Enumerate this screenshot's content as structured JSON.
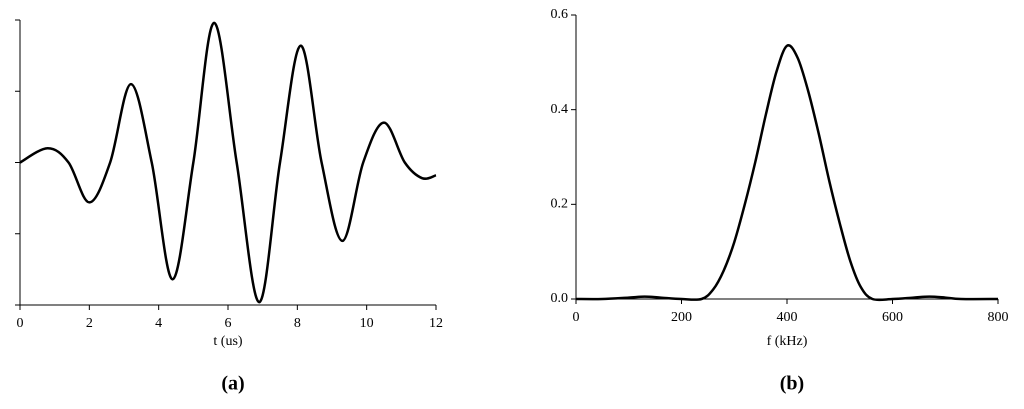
{
  "chart_data": [
    {
      "type": "line",
      "label": "(a)",
      "x_label": "t (us)",
      "xlim": [
        0,
        12
      ],
      "xticks": [
        0,
        2,
        4,
        6,
        8,
        10,
        12
      ],
      "ylim": [
        -1,
        1
      ],
      "yticks": [
        -1,
        -0.5,
        0,
        0.5,
        1
      ],
      "show_ytick_labels": false,
      "series": [
        {
          "color": "#000000",
          "x": [
            0,
            0.8,
            1.4,
            2,
            2.6,
            3.2,
            3.8,
            4.4,
            5.0,
            5.6,
            6.25,
            6.9,
            7.5,
            8.1,
            8.7,
            9.3,
            9.9,
            10.5,
            11.1,
            11.6,
            12
          ],
          "values": [
            0,
            0.1,
            0,
            -0.28,
            0,
            0.55,
            0,
            -0.82,
            0,
            0.98,
            0,
            -0.98,
            0,
            0.82,
            0,
            -0.55,
            0,
            0.28,
            0,
            -0.11,
            -0.09
          ]
        }
      ]
    },
    {
      "type": "line",
      "label": "(b)",
      "x_label": "f (kHz)",
      "xlim": [
        0,
        800
      ],
      "xticks": [
        0,
        200,
        400,
        600,
        800
      ],
      "ylim": [
        0,
        0.6
      ],
      "yticks": [
        {
          "value": 0,
          "label": "0.0"
        },
        0.2,
        0.4,
        0.6
      ],
      "show_ytick_labels": true,
      "series": [
        {
          "color": "#000000",
          "x": [
            0,
            50,
            100,
            130,
            160,
            200,
            238,
            260,
            280,
            300,
            320,
            340,
            360,
            380,
            400,
            420,
            440,
            460,
            480,
            500,
            520,
            540,
            562,
            600,
            640,
            670,
            700,
            730,
            800
          ],
          "values": [
            0,
            0,
            0.003,
            0.005,
            0.003,
            0,
            0,
            0.02,
            0.06,
            0.12,
            0.2,
            0.29,
            0.39,
            0.48,
            0.535,
            0.51,
            0.44,
            0.35,
            0.25,
            0.16,
            0.08,
            0.025,
            0,
            0,
            0.003,
            0.005,
            0.003,
            0,
            0
          ]
        }
      ]
    }
  ]
}
